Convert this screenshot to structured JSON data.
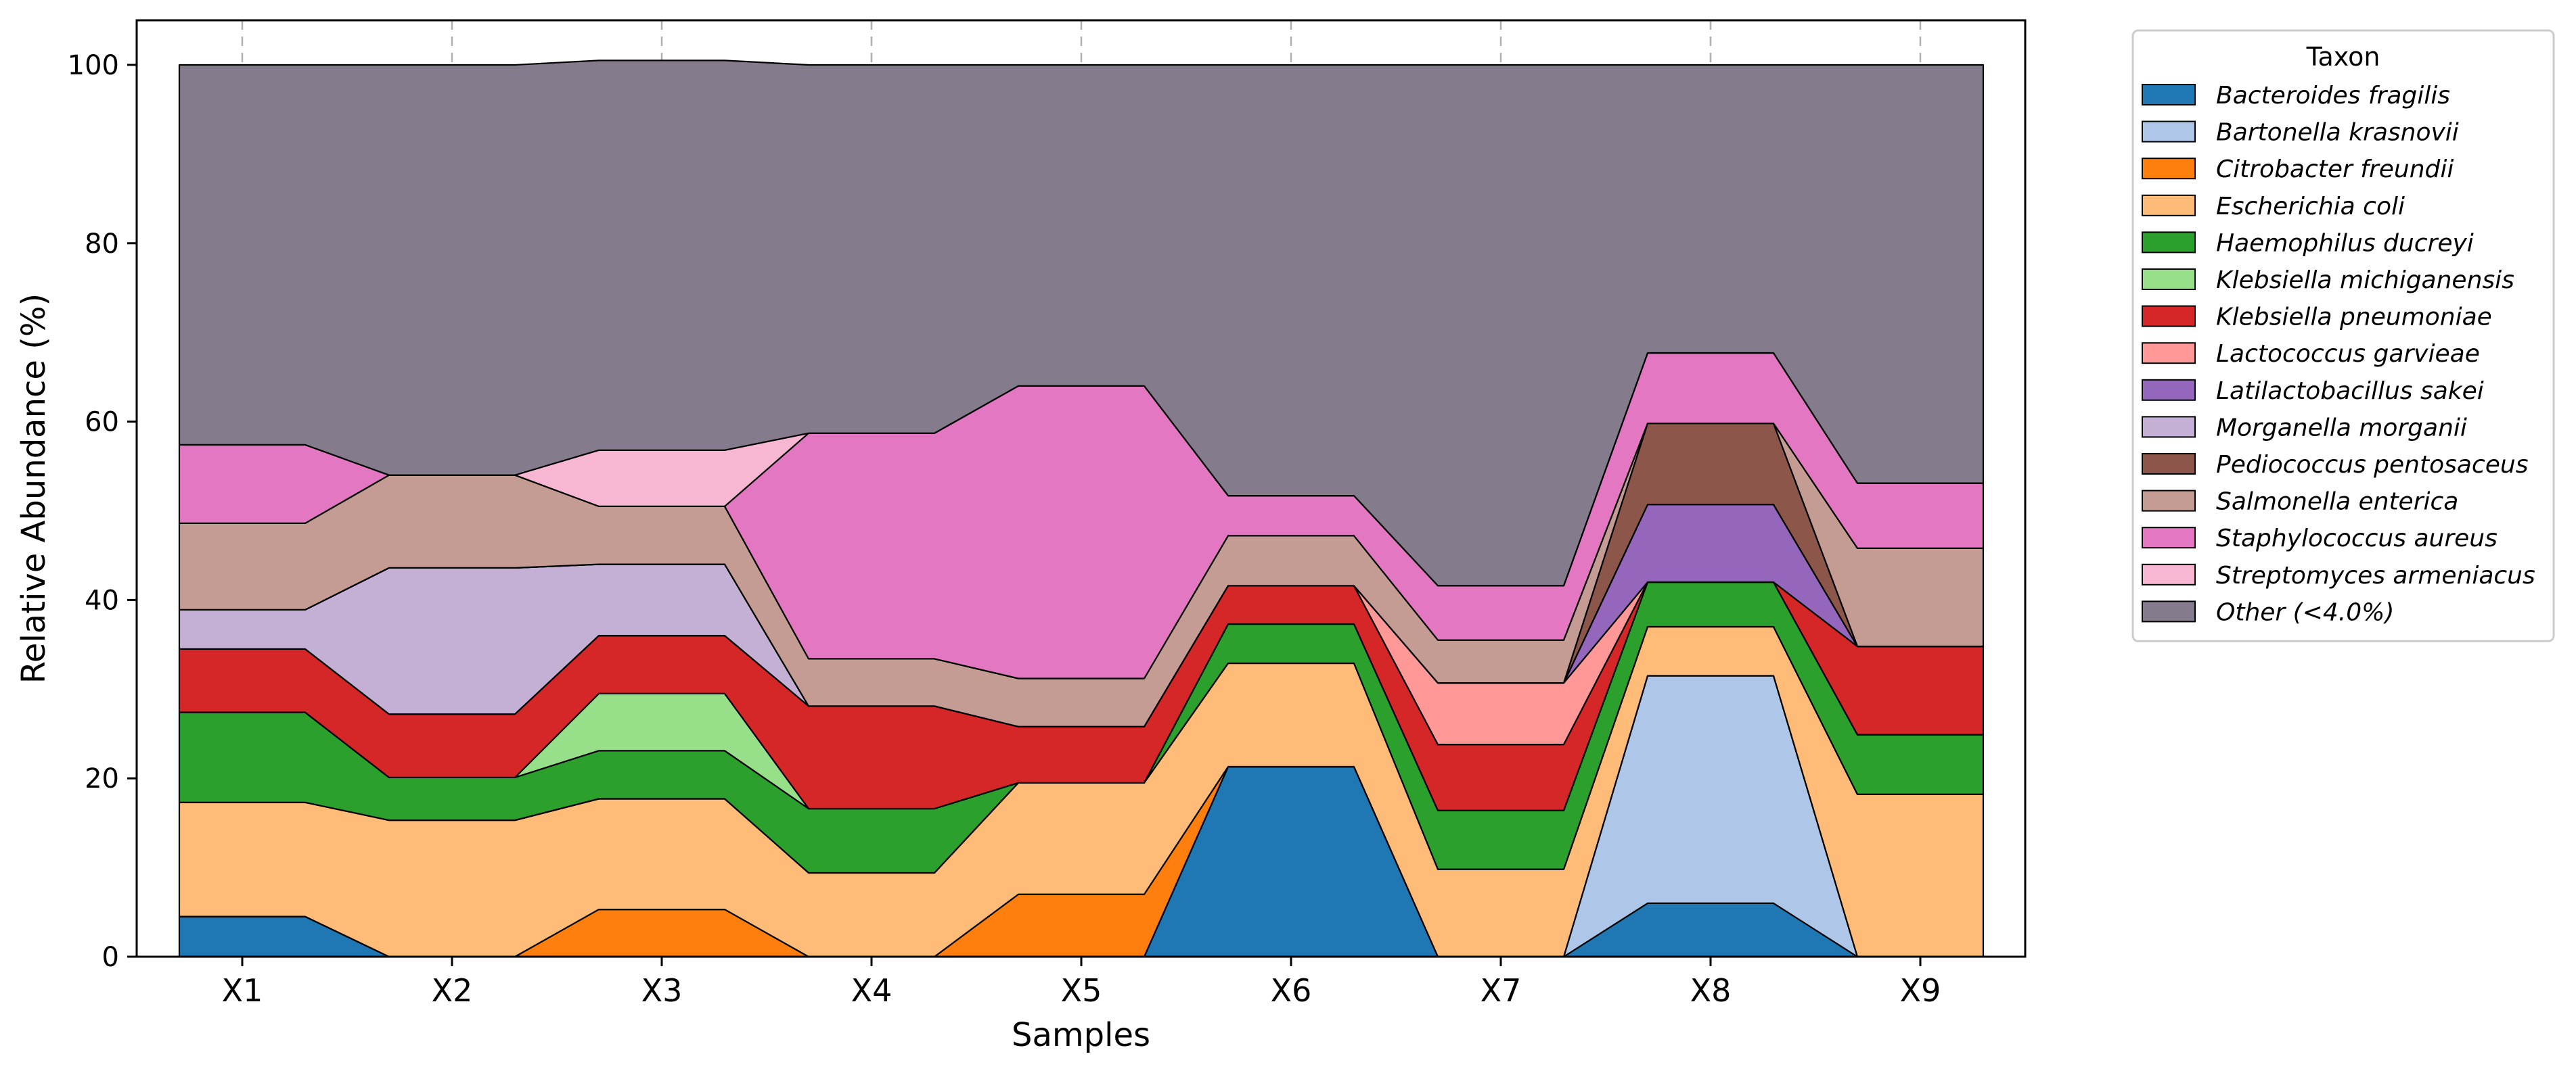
{
  "chart_data": {
    "type": "area",
    "xlabel": "Samples",
    "ylabel": "Relative Abundance (%)",
    "ylim": [
      0,
      105
    ],
    "yticks": [
      0,
      20,
      40,
      60,
      80,
      100
    ],
    "grid": "x-axis dashed",
    "legend_placement": "outside right, top",
    "legend_title": "Taxon",
    "categories": [
      "X1",
      "X2",
      "X3",
      "X4",
      "X5",
      "X6",
      "X7",
      "X8",
      "X9"
    ],
    "series": [
      {
        "name": "Bacteroides fragilis",
        "color": "#1f77b4",
        "values": [
          4.5,
          0,
          0,
          0,
          0,
          21.3,
          0,
          6.0,
          0
        ]
      },
      {
        "name": "Bartonella krasnovii",
        "color": "#aec7e8",
        "values": [
          0,
          0,
          0,
          0,
          0,
          0,
          0,
          25.5,
          0
        ]
      },
      {
        "name": "Citrobacter freundii",
        "color": "#ff7f0e",
        "values": [
          0,
          0,
          5.3,
          0,
          7.0,
          0,
          0,
          0,
          0
        ]
      },
      {
        "name": "Escherichia coli",
        "color": "#ffbb78",
        "values": [
          12.8,
          15.3,
          12.4,
          9.4,
          12.5,
          11.6,
          9.8,
          5.5,
          18.2
        ]
      },
      {
        "name": "Haemophilus ducreyi",
        "color": "#2ca02c",
        "values": [
          10.1,
          4.8,
          5.4,
          7.2,
          0,
          4.4,
          6.6,
          5.0,
          6.7
        ]
      },
      {
        "name": "Klebsiella michiganensis",
        "color": "#98df8a",
        "values": [
          0,
          0,
          6.4,
          0,
          0,
          0,
          0,
          0,
          0
        ]
      },
      {
        "name": "Klebsiella pneumoniae",
        "color": "#d62728",
        "values": [
          7.1,
          7.1,
          6.5,
          11.5,
          6.3,
          4.3,
          7.4,
          0,
          9.9
        ]
      },
      {
        "name": "Lactococcus garvieae",
        "color": "#ff9896",
        "values": [
          0,
          0,
          0,
          0,
          0,
          0,
          6.9,
          0,
          0
        ]
      },
      {
        "name": "Latilactobacillus sakei",
        "color": "#9467bd",
        "values": [
          0,
          0,
          0,
          0,
          0,
          0,
          0,
          8.7,
          0
        ]
      },
      {
        "name": "Morganella morganii",
        "color": "#c5b0d5",
        "values": [
          4.4,
          16.4,
          8.0,
          0,
          0,
          0,
          0,
          0,
          0
        ]
      },
      {
        "name": "Pediococcus pentosaceus",
        "color": "#8c564b",
        "values": [
          0,
          0,
          0,
          0,
          0,
          0,
          0,
          9.1,
          0
        ]
      },
      {
        "name": "Salmonella enterica",
        "color": "#c49c94",
        "values": [
          9.7,
          10.4,
          6.5,
          5.3,
          5.4,
          5.6,
          4.8,
          0,
          11.0
        ]
      },
      {
        "name": "Staphylococcus aureus",
        "color": "#e377c2",
        "values": [
          8.8,
          0,
          0,
          25.3,
          32.8,
          4.5,
          6.1,
          7.9,
          7.3
        ]
      },
      {
        "name": "Streptomyces armeniacus",
        "color": "#f7b6d2",
        "values": [
          0,
          0,
          6.3,
          0,
          0,
          0,
          0,
          0,
          0
        ]
      },
      {
        "name": "Other (<4.0%)",
        "color": "#847b8d",
        "values": [
          42.6,
          46.0,
          43.7,
          41.3,
          36.0,
          48.3,
          58.4,
          32.3,
          46.9
        ]
      }
    ]
  }
}
